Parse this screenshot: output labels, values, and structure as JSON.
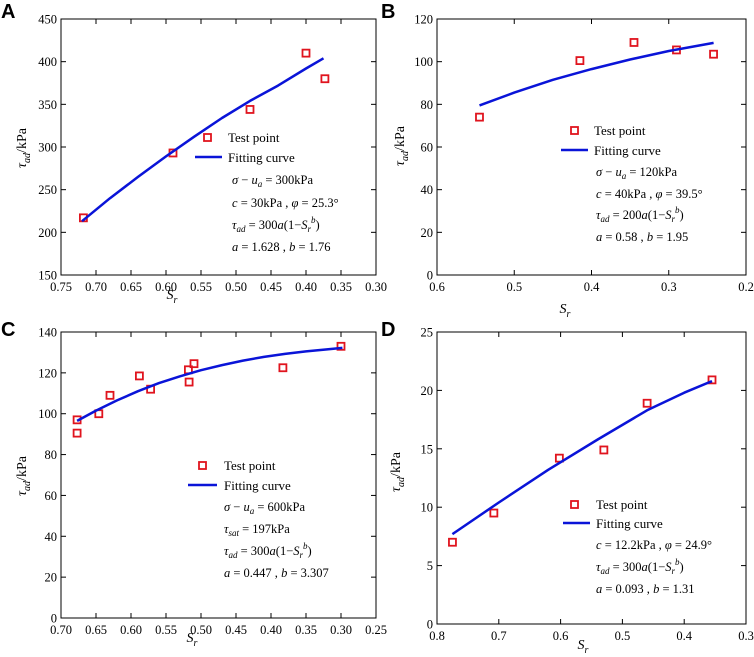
{
  "colors": {
    "curve": "#0a14d8",
    "marker": "#e0141e",
    "axis": "#000000"
  },
  "chart_data": [
    {
      "panel": "A",
      "type": "scatter",
      "xlabel": "S",
      "xlabel_sub": "r",
      "ylabel_main": "τ",
      "ylabel_sub": "ad",
      "ylabel_unit": "/kPa",
      "xlim": [
        0.75,
        0.3
      ],
      "ylim": [
        150,
        450
      ],
      "xticks": [
        "0.75",
        "0.70",
        "0.65",
        "0.60",
        "0.55",
        "0.50",
        "0.45",
        "0.40",
        "0.35",
        "0.30"
      ],
      "xtick_values": [
        0.75,
        0.7,
        0.65,
        0.6,
        0.55,
        0.5,
        0.45,
        0.4,
        0.35,
        0.3
      ],
      "yticks": [
        "150",
        "200",
        "250",
        "300",
        "350",
        "400",
        "450"
      ],
      "ytick_values": [
        150,
        200,
        250,
        300,
        350,
        400,
        450
      ],
      "series": [
        {
          "name": "Test point",
          "kind": "points",
          "x": [
            0.718,
            0.59,
            0.48,
            0.4,
            0.373
          ],
          "y": [
            217,
            293,
            344,
            410,
            380
          ]
        },
        {
          "name": "Fitting curve",
          "kind": "curve",
          "x": [
            0.72,
            0.68,
            0.64,
            0.6,
            0.56,
            0.52,
            0.48,
            0.44,
            0.4,
            0.375
          ],
          "y": [
            213,
            240,
            265,
            289,
            312,
            334,
            354,
            372,
            392,
            404
          ]
        }
      ],
      "legend": {
        "points": "Test point",
        "curve": "Fitting curve"
      },
      "annotations": [
        "σ − u_a = 300kPa",
        "c = 30kPa , φ = 25.3°",
        "τ_ad = 300a(1−S_r^b)",
        "a = 1.628 , b = 1.76"
      ]
    },
    {
      "panel": "B",
      "type": "scatter",
      "xlabel": "S",
      "xlabel_sub": "r",
      "ylabel_main": "τ",
      "ylabel_sub": "ad",
      "ylabel_unit": "/kPa",
      "xlim": [
        0.6,
        0.2
      ],
      "ylim": [
        0,
        120
      ],
      "xticks": [
        "0.6",
        "0.5",
        "0.4",
        "0.3",
        "0.2"
      ],
      "xtick_values": [
        0.6,
        0.5,
        0.4,
        0.3,
        0.2
      ],
      "yticks": [
        "0",
        "20",
        "40",
        "60",
        "80",
        "100",
        "120"
      ],
      "ytick_values": [
        0,
        20,
        40,
        60,
        80,
        100,
        120
      ],
      "series": [
        {
          "name": "Test point",
          "kind": "points",
          "x": [
            0.545,
            0.415,
            0.345,
            0.29,
            0.242
          ],
          "y": [
            74,
            100.5,
            109,
            105.5,
            103.5
          ]
        },
        {
          "name": "Fitting curve",
          "kind": "curve",
          "x": [
            0.545,
            0.5,
            0.45,
            0.4,
            0.35,
            0.3,
            0.242
          ],
          "y": [
            79.5,
            85.5,
            91.5,
            96.5,
            101,
            105,
            108.8
          ]
        }
      ],
      "legend": {
        "points": "Test point",
        "curve": "Fitting curve"
      },
      "annotations": [
        "σ − u_a = 120kPa",
        "c = 40kPa , φ = 39.5°",
        "τ_ad = 200a(1−S_r^b)",
        "a = 0.58 , b = 1.95"
      ]
    },
    {
      "panel": "C",
      "type": "scatter",
      "xlabel": "S",
      "xlabel_sub": "r",
      "ylabel_main": "τ",
      "ylabel_sub": "ad",
      "ylabel_unit": "/kPa",
      "xlim": [
        0.7,
        0.25
      ],
      "ylim": [
        0,
        140
      ],
      "xticks": [
        "0.70",
        "0.65",
        "0.60",
        "0.55",
        "0.50",
        "0.45",
        "0.40",
        "0.35",
        "0.30",
        "0.25"
      ],
      "xtick_values": [
        0.7,
        0.65,
        0.6,
        0.55,
        0.5,
        0.45,
        0.4,
        0.35,
        0.3,
        0.25
      ],
      "yticks": [
        "0",
        "20",
        "40",
        "60",
        "80",
        "100",
        "120",
        "140"
      ],
      "ytick_values": [
        0,
        20,
        40,
        60,
        80,
        100,
        120,
        140
      ],
      "series": [
        {
          "name": "Test point",
          "kind": "points",
          "x": [
            0.677,
            0.677,
            0.646,
            0.63,
            0.588,
            0.572,
            0.518,
            0.517,
            0.51,
            0.383,
            0.3
          ],
          "y": [
            97,
            90.5,
            100,
            109,
            118.5,
            112,
            121.5,
            115.5,
            124.5,
            122.5,
            133
          ]
        },
        {
          "name": "Fitting curve",
          "kind": "curve",
          "x": [
            0.677,
            0.65,
            0.62,
            0.59,
            0.56,
            0.53,
            0.5,
            0.47,
            0.44,
            0.41,
            0.38,
            0.35,
            0.32,
            0.298
          ],
          "y": [
            96.5,
            101.5,
            106.5,
            111,
            115,
            118.3,
            121.3,
            123.8,
            126,
            127.8,
            129.3,
            130.5,
            131.5,
            132.2
          ]
        }
      ],
      "legend": {
        "points": "Test point",
        "curve": "Fitting curve"
      },
      "annotations": [
        "σ − u_a = 600kPa",
        "τ_sat = 197kPa",
        "τ_ad = 300a(1−S_r^b)",
        "a = 0.447 , b = 3.307"
      ]
    },
    {
      "panel": "D",
      "type": "scatter",
      "xlabel": "S",
      "xlabel_sub": "r",
      "ylabel_main": "τ",
      "ylabel_sub": "ad",
      "ylabel_unit": "/kPa",
      "xlim": [
        0.8,
        0.3
      ],
      "ylim": [
        0,
        25
      ],
      "xticks": [
        "0.8",
        "0.7",
        "0.6",
        "0.5",
        "0.4",
        "0.3"
      ],
      "xtick_values": [
        0.8,
        0.7,
        0.6,
        0.5,
        0.4,
        0.3
      ],
      "yticks": [
        "0",
        "5",
        "10",
        "15",
        "20",
        "25"
      ],
      "ytick_values": [
        0,
        5,
        10,
        15,
        20,
        25
      ],
      "series": [
        {
          "name": "Test point",
          "kind": "points",
          "x": [
            0.775,
            0.708,
            0.602,
            0.53,
            0.46,
            0.355
          ],
          "y": [
            7.0,
            9.5,
            14.2,
            14.9,
            18.9,
            20.9
          ]
        },
        {
          "name": "Fitting curve",
          "kind": "curve",
          "x": [
            0.775,
            0.7,
            0.62,
            0.54,
            0.46,
            0.4,
            0.355
          ],
          "y": [
            7.7,
            10.4,
            13.2,
            15.8,
            18.3,
            19.8,
            20.8
          ]
        }
      ],
      "legend": {
        "points": "Test point",
        "curve": "Fitting curve"
      },
      "annotations": [
        "c = 12.2kPa , φ = 24.9°",
        "τ_ad = 300a(1−S_r^b)",
        "a = 0.093 , b = 1.31"
      ]
    }
  ]
}
